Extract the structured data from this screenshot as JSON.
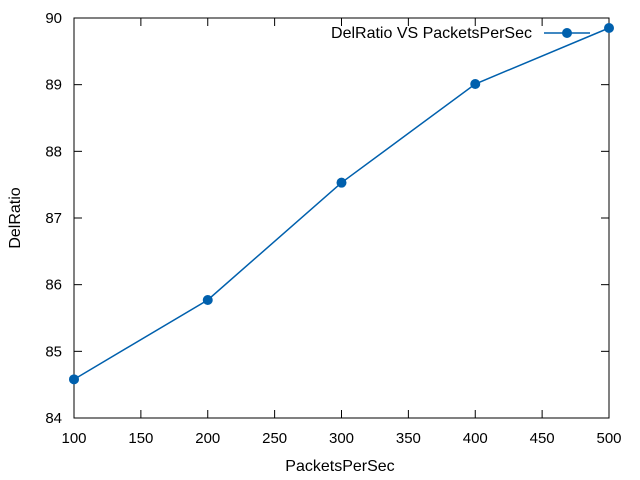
{
  "chart_data": {
    "type": "line",
    "xlabel": "PacketsPerSec",
    "ylabel": "DelRatio",
    "xlim": [
      100,
      500
    ],
    "ylim": [
      84,
      90
    ],
    "xticks": [
      100,
      150,
      200,
      250,
      300,
      350,
      400,
      450,
      500
    ],
    "yticks": [
      84,
      85,
      86,
      87,
      88,
      89,
      90
    ],
    "grid": false,
    "legend_position": "top-right",
    "series": [
      {
        "name": "DelRatio VS PacketsPerSec",
        "color": "#0060ad",
        "marker": "circle",
        "x": [
          100,
          200,
          300,
          400,
          500
        ],
        "y": [
          84.58,
          85.77,
          87.53,
          89.01,
          89.85
        ]
      }
    ]
  }
}
